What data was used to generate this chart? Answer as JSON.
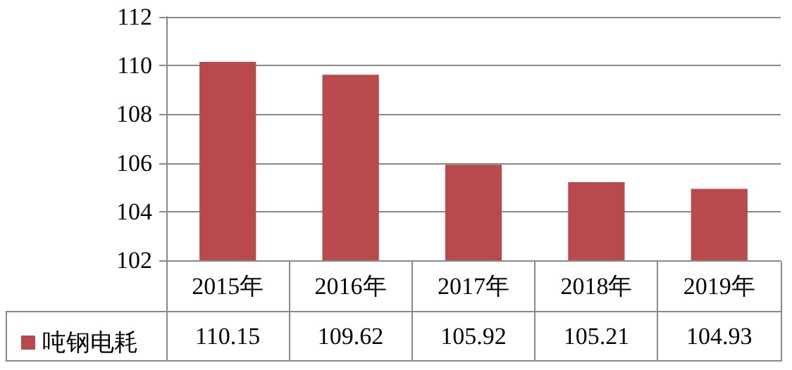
{
  "chart_data": {
    "type": "bar",
    "categories": [
      "2015年",
      "2016年",
      "2017年",
      "2018年",
      "2019年"
    ],
    "series": [
      {
        "name": "吨钢电耗",
        "color": "#b84a4e",
        "values": [
          110.15,
          109.62,
          105.92,
          105.21,
          104.93
        ]
      }
    ],
    "ylim": [
      102,
      112
    ],
    "yticks": [
      102,
      104,
      106,
      108,
      110,
      112
    ],
    "grid": "y",
    "legend": "bottom left",
    "data_labels": true
  }
}
